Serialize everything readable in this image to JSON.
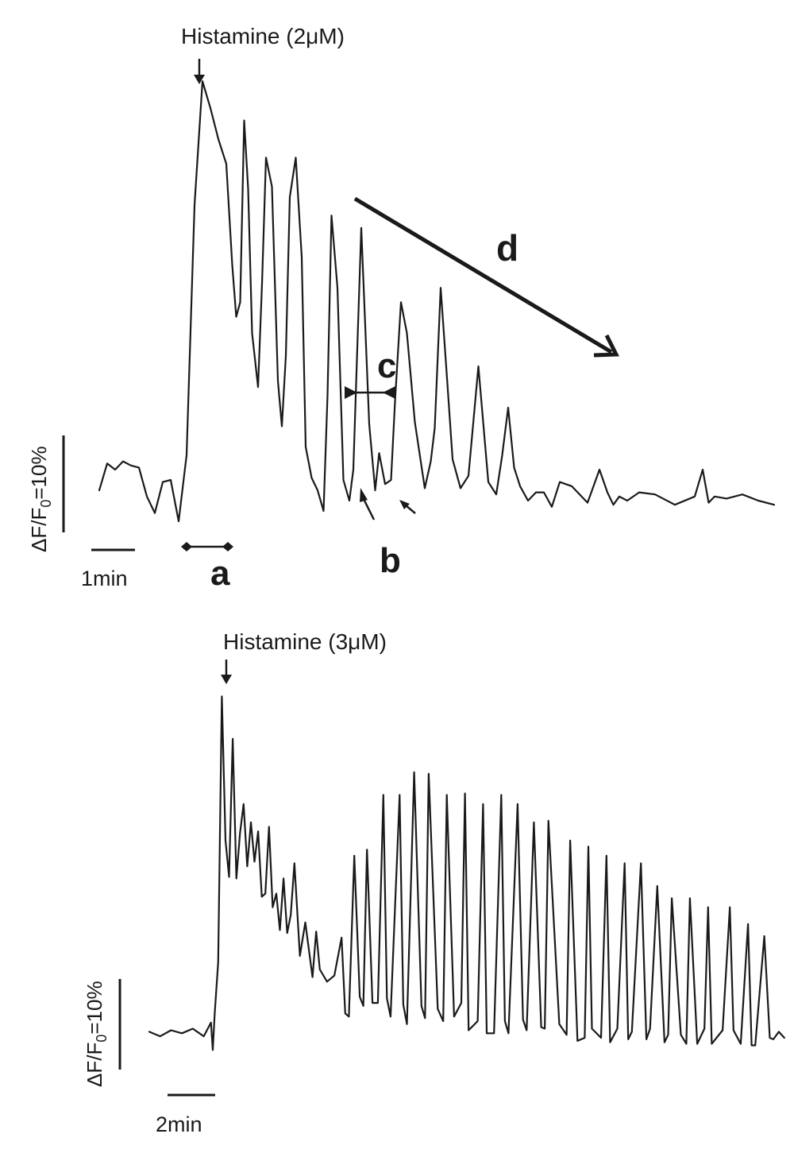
{
  "chart_data": [
    {
      "type": "line",
      "title": "",
      "annotation": "Histamine (2μM)",
      "scale_bars": {
        "y_label": "ΔF/F",
        "y_subscript": "0",
        "y_value": "=10%",
        "x_label": "1min"
      },
      "markers": {
        "a": "a",
        "b": "b",
        "c": "c",
        "d": "d"
      },
      "series": [
        {
          "x": [
            0.0,
            0.2,
            0.4,
            0.6,
            0.8,
            1.0,
            1.2,
            1.4,
            1.6,
            1.8,
            2.0,
            2.2,
            2.4,
            2.6,
            2.8,
            3.0,
            3.2,
            3.35,
            3.45,
            3.55,
            3.65,
            3.75,
            3.85,
            4.0,
            4.1,
            4.2,
            4.35,
            4.5,
            4.6,
            4.7,
            4.8,
            4.95,
            5.1,
            5.2,
            5.35,
            5.5,
            5.65,
            5.75,
            5.85,
            6.0,
            6.15,
            6.3,
            6.4,
            6.5,
            6.6,
            6.8,
            6.95,
            7.05,
            7.2,
            7.35,
            7.45,
            7.6,
            7.75,
            7.95,
            8.2,
            8.35,
            8.45,
            8.6,
            8.75,
            8.9,
            9.1,
            9.3,
            9.55,
            9.8,
            10.0,
            10.15,
            10.3,
            10.45,
            10.6,
            10.8,
            11.0,
            11.2,
            11.4,
            11.6,
            11.9,
            12.3,
            12.6,
            12.8,
            12.95,
            13.1,
            13.3,
            13.6,
            14.0,
            14.5,
            15.0,
            15.2,
            15.35,
            15.5,
            15.8,
            16.2,
            16.6,
            17.0
          ],
          "values": [
            0.5,
            1.8,
            1.5,
            1.9,
            1.7,
            1.6,
            0.2,
            -0.6,
            0.9,
            1.0,
            -1.0,
            2.2,
            14.3,
            20.3,
            19.0,
            17.5,
            16.3,
            11.4,
            8.9,
            9.6,
            18.4,
            15.1,
            8.1,
            5.5,
            10.5,
            16.6,
            15.2,
            5.8,
            3.6,
            7.0,
            14.7,
            16.6,
            11.8,
            2.6,
            1.1,
            0.5,
            -0.5,
            5.1,
            13.8,
            10.3,
            1.0,
            0.0,
            1.5,
            7.4,
            13.2,
            3.7,
            0.5,
            2.3,
            0.8,
            1.0,
            4.8,
            9.6,
            8.1,
            3.8,
            0.6,
            1.9,
            3.5,
            10.3,
            6.2,
            2.0,
            0.6,
            1.2,
            6.5,
            0.9,
            0.3,
            2.2,
            4.5,
            1.6,
            0.7,
            0.0,
            0.4,
            0.4,
            -0.3,
            0.9,
            0.7,
            -0.1,
            1.5,
            0.4,
            -0.2,
            0.2,
            0.0,
            0.4,
            0.3,
            -0.2,
            0.2,
            1.5,
            -0.1,
            0.2,
            0.1,
            0.3,
            0.0,
            -0.2
          ]
        }
      ]
    },
    {
      "type": "line",
      "title": "",
      "annotation": "Histamine (3μM)",
      "scale_bars": {
        "y_label": "ΔF/F",
        "y_subscript": "0",
        "y_value": "=10%",
        "x_label": "2min"
      },
      "series": [
        {
          "x": [
            0.0,
            0.3,
            0.6,
            0.9,
            1.2,
            1.5,
            1.7,
            1.75,
            1.8,
            1.9,
            2.0,
            2.1,
            2.2,
            2.3,
            2.4,
            2.5,
            2.6,
            2.7,
            2.8,
            2.9,
            3.0,
            3.1,
            3.2,
            3.3,
            3.4,
            3.5,
            3.6,
            3.7,
            3.8,
            3.9,
            4.0,
            4.15,
            4.3,
            4.5,
            4.6,
            4.7,
            4.9,
            5.1,
            5.3,
            5.4,
            5.5,
            5.65,
            5.8,
            5.9,
            6.0,
            6.15,
            6.3,
            6.45,
            6.55,
            6.65,
            6.9,
            7.0,
            7.1,
            7.3,
            7.5,
            7.6,
            7.7,
            7.95,
            8.1,
            8.2,
            8.4,
            8.6,
            8.7,
            8.8,
            9.05,
            9.2,
            9.3,
            9.5,
            9.7,
            9.8,
            9.9,
            10.15,
            10.3,
            10.4,
            10.6,
            10.8,
            10.9,
            11.0,
            11.3,
            11.5,
            11.6,
            11.8,
            12.0,
            12.1,
            12.2,
            12.45,
            12.6,
            12.7,
            12.9,
            13.1,
            13.2,
            13.3,
            13.55,
            13.7,
            13.8,
            14.0,
            14.2,
            14.3,
            14.4,
            14.65,
            14.8,
            14.9,
            15.1,
            15.3,
            15.4,
            15.5,
            15.8,
            16.0,
            16.1,
            16.3,
            16.5,
            16.6,
            16.7,
            16.95,
            17.1,
            17.2,
            17.35,
            17.5
          ],
          "values": [
            0.4,
            0.1,
            0.5,
            0.3,
            0.6,
            0.1,
            1.0,
            -0.8,
            1.5,
            5.0,
            22.5,
            13.0,
            10.6,
            19.7,
            10.5,
            13.5,
            15.4,
            11.3,
            14.2,
            11.6,
            13.6,
            9.3,
            9.5,
            13.9,
            8.6,
            9.5,
            7.1,
            10.5,
            6.9,
            8.1,
            11.5,
            5.4,
            7.6,
            4.0,
            7.0,
            4.5,
            3.7,
            4.1,
            6.6,
            1.6,
            1.4,
            12.0,
            2.7,
            2.1,
            12.4,
            2.3,
            2.3,
            16.0,
            2.6,
            1.4,
            16.0,
            2.2,
            0.9,
            17.5,
            2.1,
            1.3,
            17.4,
            1.9,
            1.1,
            16.0,
            1.4,
            2.3,
            16.1,
            0.5,
            1.1,
            15.4,
            0.3,
            0.3,
            16.0,
            1.1,
            0.3,
            15.4,
            1.2,
            0.5,
            14.2,
            0.7,
            0.6,
            14.3,
            0.9,
            0.2,
            13.0,
            -0.2,
            0.0,
            12.6,
            0.6,
            0.0,
            12.0,
            -0.3,
            0.6,
            11.5,
            -0.1,
            0.4,
            11.5,
            -0.1,
            0.6,
            10.0,
            -0.3,
            0.2,
            9.2,
            0.2,
            -0.4,
            9.2,
            -0.4,
            0.6,
            8.6,
            -0.4,
            0.5,
            8.6,
            0.5,
            -0.4,
            7.5,
            -0.5,
            -0.5,
            6.7,
            0.0,
            -0.1,
            0.4,
            0.0
          ]
        }
      ]
    }
  ]
}
